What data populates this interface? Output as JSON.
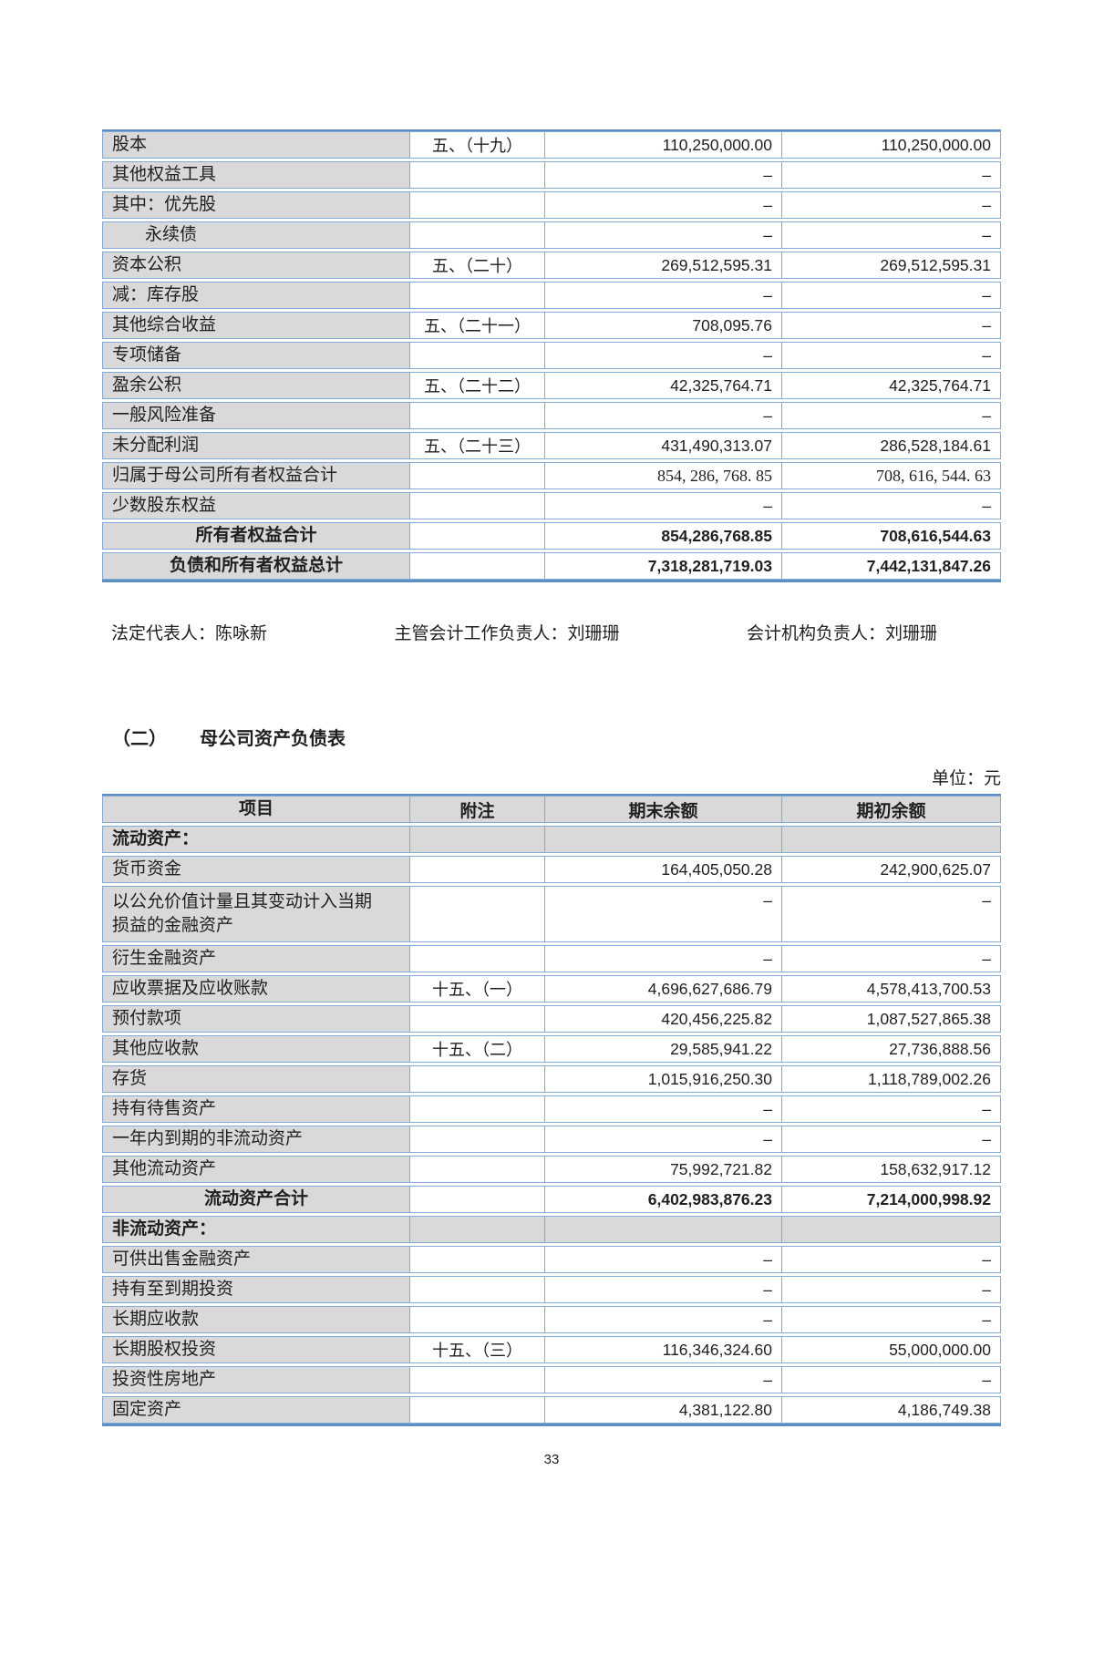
{
  "page_number": "33",
  "unit_label": "单位：元",
  "section": {
    "index": "（二）",
    "title": "母公司资产负债表"
  },
  "signatures": {
    "legal_rep": "法定代表人：陈咏新",
    "chief_accountant": "主管会计工作负责人：刘珊珊",
    "accounting_head": "会计机构负责人：刘珊珊"
  },
  "equity_table": {
    "rows": [
      {
        "label": "股本",
        "note": "五、（十九）",
        "end": "110,250,000.00",
        "begin": "110,250,000.00",
        "type": "item"
      },
      {
        "label": "其他权益工具",
        "note": "",
        "end": "–",
        "begin": "–",
        "type": "item"
      },
      {
        "label": "其中：优先股",
        "note": "",
        "end": "–",
        "begin": "–",
        "type": "item"
      },
      {
        "label": "永续债",
        "note": "",
        "end": "–",
        "begin": "–",
        "type": "item",
        "indent": 1
      },
      {
        "label": "资本公积",
        "note": "五、（二十）",
        "end": "269,512,595.31",
        "begin": "269,512,595.31",
        "type": "item"
      },
      {
        "label": "减：库存股",
        "note": "",
        "end": "–",
        "begin": "–",
        "type": "item"
      },
      {
        "label": "其他综合收益",
        "note": "五、（二十一）",
        "end": "708,095.76",
        "begin": "–",
        "type": "item"
      },
      {
        "label": "专项储备",
        "note": "",
        "end": "–",
        "begin": "–",
        "type": "item"
      },
      {
        "label": "盈余公积",
        "note": "五、（二十二）",
        "end": "42,325,764.71",
        "begin": "42,325,764.71",
        "type": "item"
      },
      {
        "label": "一般风险准备",
        "note": "",
        "end": "–",
        "begin": "–",
        "type": "item"
      },
      {
        "label": "未分配利润",
        "note": "五、（二十三）",
        "end": "431,490,313.07",
        "begin": "286,528,184.61",
        "type": "item"
      },
      {
        "label": "归属于母公司所有者权益合计",
        "note": "",
        "end": "854, 286, 768. 85",
        "begin": "708, 616, 544. 63",
        "type": "item",
        "serif_values": true
      },
      {
        "label": "少数股东权益",
        "note": "",
        "end": "–",
        "begin": "–",
        "type": "item"
      },
      {
        "label": "所有者权益合计",
        "note": "",
        "end": "854,286,768.85",
        "begin": "708,616,544.63",
        "type": "subtotal"
      },
      {
        "label": "负债和所有者权益总计",
        "note": "",
        "end": "7,318,281,719.03",
        "begin": "7,442,131,847.26",
        "type": "subtotal"
      }
    ]
  },
  "balance_table": {
    "headers": {
      "item": "项目",
      "note": "附注",
      "end": "期末余额",
      "begin": "期初余额"
    },
    "rows": [
      {
        "label": "流动资产：",
        "note": "",
        "end": "",
        "begin": "",
        "type": "section"
      },
      {
        "label": "货币资金",
        "note": "",
        "end": "164,405,050.28",
        "begin": "242,900,625.07",
        "type": "item"
      },
      {
        "label": "以公允价值计量且其变动计入当期\n损益的金融资产",
        "note": "",
        "end": "–",
        "begin": "–",
        "type": "item"
      },
      {
        "label": "衍生金融资产",
        "note": "",
        "end": "–",
        "begin": "–",
        "type": "item"
      },
      {
        "label": "应收票据及应收账款",
        "note": "十五、（一）",
        "end": "4,696,627,686.79",
        "begin": "4,578,413,700.53",
        "type": "item"
      },
      {
        "label": "预付款项",
        "note": "",
        "end": "420,456,225.82",
        "begin": "1,087,527,865.38",
        "type": "item"
      },
      {
        "label": "其他应收款",
        "note": "十五、（二）",
        "end": "29,585,941.22",
        "begin": "27,736,888.56",
        "type": "item"
      },
      {
        "label": "存货",
        "note": "",
        "end": "1,015,916,250.30",
        "begin": "1,118,789,002.26",
        "type": "item"
      },
      {
        "label": "持有待售资产",
        "note": "",
        "end": "–",
        "begin": "–",
        "type": "item"
      },
      {
        "label": "一年内到期的非流动资产",
        "note": "",
        "end": "–",
        "begin": "–",
        "type": "item"
      },
      {
        "label": "其他流动资产",
        "note": "",
        "end": "75,992,721.82",
        "begin": "158,632,917.12",
        "type": "item"
      },
      {
        "label": "流动资产合计",
        "note": "",
        "end": "6,402,983,876.23",
        "begin": "7,214,000,998.92",
        "type": "subtotal"
      },
      {
        "label": "非流动资产：",
        "note": "",
        "end": "",
        "begin": "",
        "type": "section"
      },
      {
        "label": "可供出售金融资产",
        "note": "",
        "end": "–",
        "begin": "–",
        "type": "item"
      },
      {
        "label": "持有至到期投资",
        "note": "",
        "end": "–",
        "begin": "–",
        "type": "item"
      },
      {
        "label": "长期应收款",
        "note": "",
        "end": "–",
        "begin": "–",
        "type": "item"
      },
      {
        "label": "长期股权投资",
        "note": "十五、（三）",
        "end": "116,346,324.60",
        "begin": "55,000,000.00",
        "type": "item"
      },
      {
        "label": "投资性房地产",
        "note": "",
        "end": "–",
        "begin": "–",
        "type": "item"
      },
      {
        "label": "固定资产",
        "note": "",
        "end": "4,381,122.80",
        "begin": "4,186,749.38",
        "type": "item"
      }
    ]
  }
}
